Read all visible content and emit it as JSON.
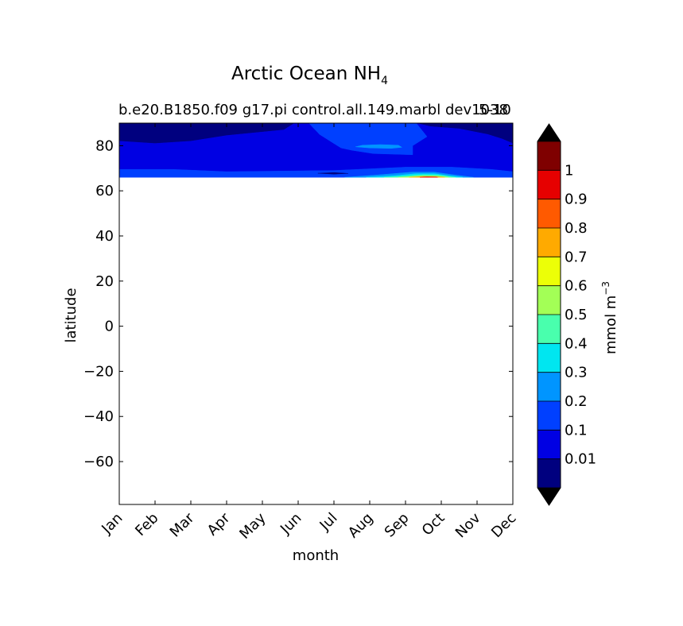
{
  "chart_data": {
    "type": "heatmap",
    "title": "Arctic Ocean NH",
    "title_subscript": "4",
    "subtitle": "b.e20.B1850.f09 g17.pi control.all.149.marbl dev1038",
    "subtitle_overlap": "5-10",
    "xlabel": "month",
    "ylabel": "latitude",
    "x_ticks": [
      "Jan",
      "Feb",
      "Mar",
      "Apr",
      "May",
      "Jun",
      "Jul",
      "Aug",
      "Sep",
      "Oct",
      "Nov",
      "Dec"
    ],
    "y_ticks": [
      "80",
      "60",
      "40",
      "20",
      "0",
      "−20",
      "−40",
      "−60"
    ],
    "y_tick_values": [
      80,
      60,
      40,
      20,
      0,
      -20,
      -40,
      -60
    ],
    "xlim": [
      0,
      11
    ],
    "ylim": [
      -79,
      90
    ],
    "colorbar": {
      "label": "mmol m",
      "label_superscript": "−3",
      "tick_labels": [
        "0.01",
        "0.1",
        "0.2",
        "0.3",
        "0.4",
        "0.5",
        "0.6",
        "0.7",
        "0.8",
        "0.9",
        "1"
      ],
      "levels": [
        0.01,
        0.1,
        0.2,
        0.3,
        0.4,
        0.5,
        0.6,
        0.7,
        0.8,
        0.9,
        1.0
      ],
      "bin_colors": [
        "#00007f",
        "#0000e3",
        "#0040ff",
        "#0095ff",
        "#00e6f0",
        "#49ffad",
        "#a3ff56",
        "#ecff07",
        "#ffaa00",
        "#ff5a00",
        "#e60000",
        "#7f0000"
      ],
      "extend": "both",
      "under_color": "#000000",
      "over_color": "#000000"
    },
    "data_region": {
      "lat_min": 66,
      "lat_max": 90
    },
    "contour_regions": [
      {
        "level_index": 0,
        "color": "#00007f",
        "polygon": [
          [
            0,
            90
          ],
          [
            4.9,
            90
          ],
          [
            4.6,
            87
          ],
          [
            3.0,
            84.5
          ],
          [
            2.0,
            82
          ],
          [
            1.0,
            81
          ],
          [
            0,
            82
          ]
        ]
      },
      {
        "level_index": 0,
        "color": "#00007f",
        "polygon": [
          [
            8.3,
            90
          ],
          [
            11,
            90
          ],
          [
            11,
            81
          ],
          [
            10.7,
            83
          ],
          [
            10.3,
            85
          ],
          [
            9.5,
            87.5
          ],
          [
            8.7,
            88.5
          ]
        ]
      },
      {
        "level_index": 1,
        "color": "#0000e3",
        "polygon": [
          [
            0,
            82
          ],
          [
            1.0,
            81
          ],
          [
            2.0,
            82
          ],
          [
            3.0,
            84.5
          ],
          [
            4.6,
            87
          ],
          [
            4.9,
            90
          ],
          [
            5.3,
            90
          ],
          [
            5.6,
            85
          ],
          [
            6.0,
            81
          ],
          [
            6.2,
            79
          ],
          [
            6.5,
            78
          ],
          [
            7.1,
            76.5
          ],
          [
            8.2,
            76
          ],
          [
            8.2,
            80
          ],
          [
            8.6,
            84
          ],
          [
            8.3,
            90
          ],
          [
            8.7,
            88.5
          ],
          [
            9.5,
            87.5
          ],
          [
            10.3,
            85
          ],
          [
            10.7,
            83
          ],
          [
            11,
            81
          ],
          [
            11,
            68.5
          ],
          [
            10.4,
            69.5
          ],
          [
            9.3,
            70.5
          ],
          [
            8.0,
            70.5
          ],
          [
            6.0,
            69
          ],
          [
            3.0,
            68.5
          ],
          [
            1.5,
            69.5
          ],
          [
            0,
            69.5
          ]
        ]
      },
      {
        "level_index": 2,
        "color": "#0040ff",
        "polygon": [
          [
            0,
            69.5
          ],
          [
            1.5,
            69.5
          ],
          [
            3.0,
            68.5
          ],
          [
            6.0,
            69
          ],
          [
            8.0,
            70.5
          ],
          [
            9.3,
            70.5
          ],
          [
            10.4,
            69.5
          ],
          [
            11,
            68.5
          ],
          [
            11,
            66
          ],
          [
            0,
            66
          ]
        ]
      },
      {
        "level_index": 2,
        "color": "#0040ff",
        "polygon": [
          [
            5.3,
            90
          ],
          [
            5.6,
            85
          ],
          [
            6.0,
            81
          ],
          [
            6.2,
            79
          ],
          [
            6.5,
            78
          ],
          [
            7.1,
            76.5
          ],
          [
            8.2,
            76
          ],
          [
            8.2,
            80
          ],
          [
            8.6,
            84
          ],
          [
            8.3,
            90
          ]
        ]
      },
      {
        "level_index": 3,
        "color": "#0095ff",
        "polygon": [
          [
            6.6,
            79.5
          ],
          [
            7.0,
            79
          ],
          [
            7.6,
            78.8
          ],
          [
            7.9,
            79.3
          ],
          [
            7.8,
            80.2
          ],
          [
            7.3,
            80.5
          ],
          [
            6.8,
            80.2
          ]
        ]
      },
      {
        "level_index": 0,
        "color": "#00007f",
        "polygon": [
          [
            5.55,
            67.8
          ],
          [
            6.0,
            67.4
          ],
          [
            6.4,
            67.7
          ],
          [
            6.0,
            68.1
          ]
        ]
      },
      {
        "level_index": 3,
        "color": "#0095ff",
        "polygon": [
          [
            6.3,
            66
          ],
          [
            7.2,
            67
          ],
          [
            8.2,
            68.3
          ],
          [
            8.8,
            68.3
          ],
          [
            9.3,
            67.2
          ],
          [
            9.9,
            66
          ]
        ]
      },
      {
        "level_index": 4,
        "color": "#00e6f0",
        "polygon": [
          [
            6.9,
            66
          ],
          [
            7.7,
            66.7
          ],
          [
            8.3,
            67.6
          ],
          [
            8.8,
            67.6
          ],
          [
            9.2,
            66.7
          ],
          [
            9.6,
            66
          ]
        ]
      },
      {
        "level_index": 5,
        "color": "#49ffad",
        "polygon": [
          [
            7.4,
            66
          ],
          [
            8.0,
            66.5
          ],
          [
            8.5,
            67.1
          ],
          [
            8.9,
            67.0
          ],
          [
            9.2,
            66.4
          ],
          [
            9.4,
            66
          ]
        ]
      },
      {
        "level_index": 6,
        "color": "#a3ff56",
        "polygon": [
          [
            7.8,
            66
          ],
          [
            8.3,
            66.5
          ],
          [
            8.8,
            66.6
          ],
          [
            9.1,
            66.2
          ],
          [
            9.2,
            66
          ]
        ]
      },
      {
        "level_index": 8,
        "color": "#ffaa00",
        "polygon": [
          [
            8.1,
            66
          ],
          [
            8.5,
            66.4
          ],
          [
            8.9,
            66.3
          ],
          [
            9.1,
            66
          ]
        ]
      },
      {
        "level_index": 10,
        "color": "#e60000",
        "polygon": [
          [
            8.4,
            66
          ],
          [
            8.6,
            66.2
          ],
          [
            8.85,
            66.1
          ],
          [
            8.9,
            66
          ]
        ]
      }
    ]
  }
}
